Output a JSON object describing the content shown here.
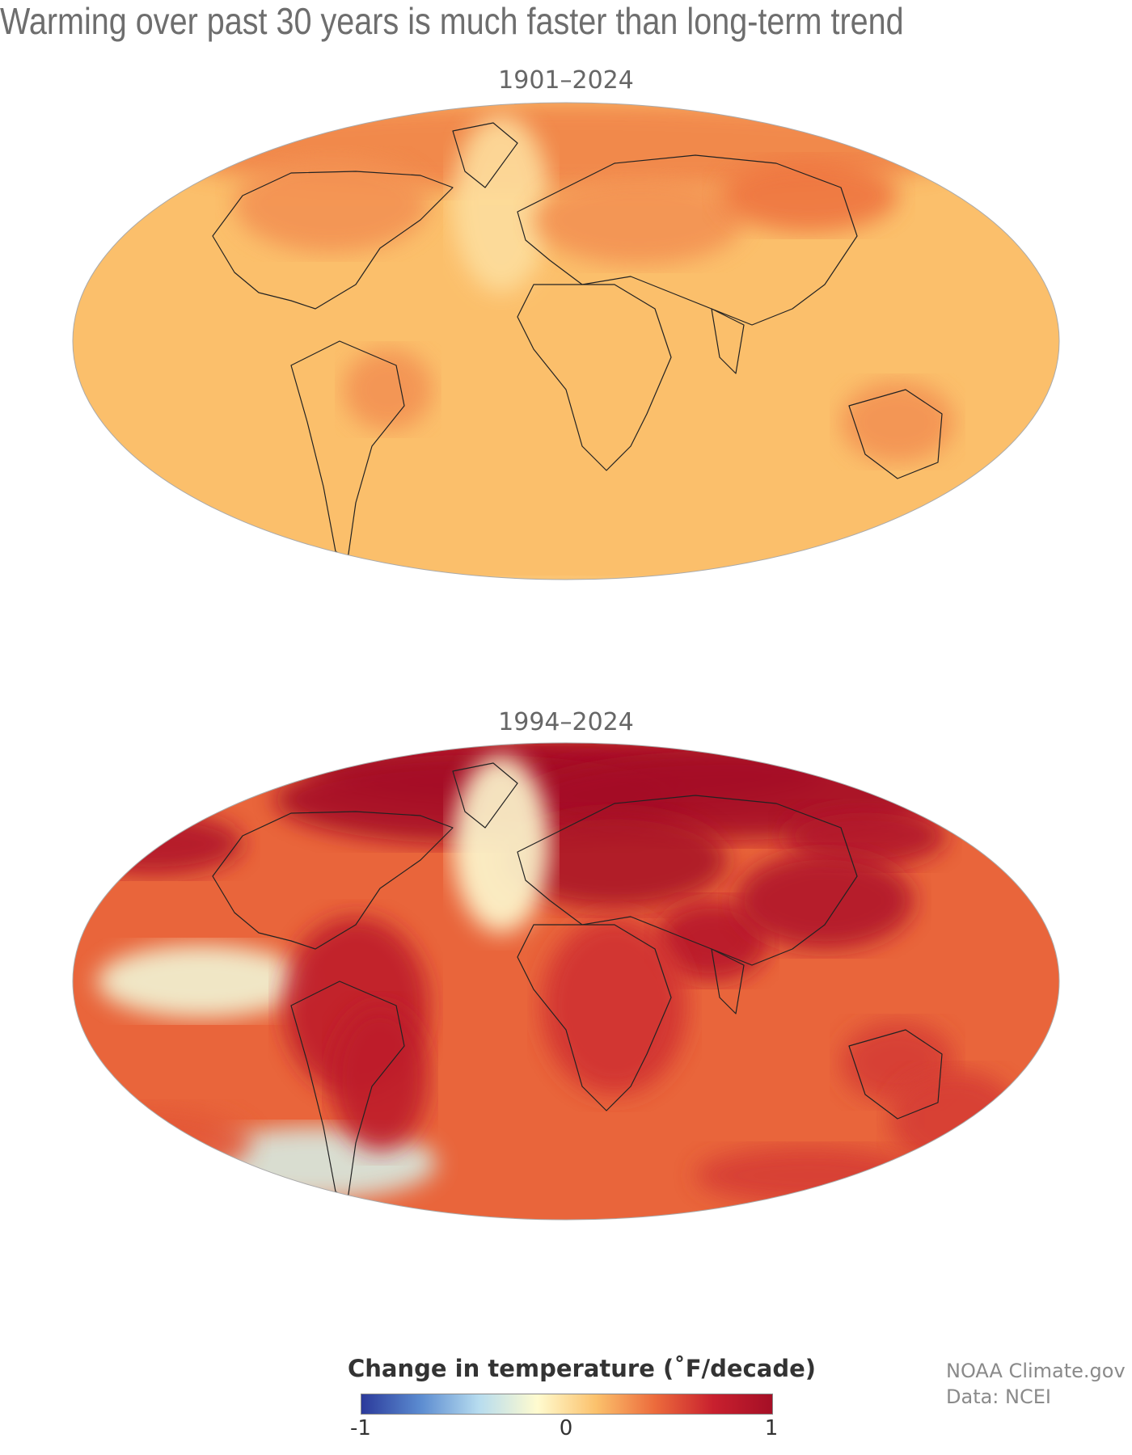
{
  "title": "Warming over past 30 years is much faster than long-term trend",
  "maps": [
    {
      "period": "1901–2024"
    },
    {
      "period": "1994–2024"
    }
  ],
  "legend": {
    "title": "Change in temperature (˚F/decade)",
    "unit": "°F/decade",
    "min": -1,
    "mid": 0,
    "max": 1,
    "tick_neg": "-1",
    "tick_zero": "0",
    "tick_pos": "1",
    "colors": [
      "#2b3a9b",
      "#5b8bd0",
      "#b7dcef",
      "#fffbcf",
      "#fbc16c",
      "#ec6b3c",
      "#c8202e",
      "#a50f26"
    ]
  },
  "credit": {
    "line1": "NOAA Climate.gov",
    "line2": "Data: NCEI"
  },
  "chart_data": {
    "type": "heatmap",
    "projection": "Mollweide",
    "value_range": [
      -1,
      1
    ],
    "maps": [
      {
        "period": "1901–2024",
        "regions": [
          {
            "region": "global oceans",
            "value": 0.15
          },
          {
            "region": "northern high latitudes",
            "value": 0.35
          },
          {
            "region": "Canada / Alaska",
            "value": 0.3
          },
          {
            "region": "North Atlantic south of Greenland",
            "value": 0.0
          },
          {
            "region": "Europe / Russia",
            "value": 0.3
          },
          {
            "region": "Siberia / Mongolia",
            "value": 0.4
          },
          {
            "region": "Brazil",
            "value": 0.3
          },
          {
            "region": "Australia",
            "value": 0.3
          },
          {
            "region": "Antarctica",
            "value": 0.05
          }
        ]
      },
      {
        "period": "1994–2024",
        "regions": [
          {
            "region": "Arctic",
            "value": 1.0
          },
          {
            "region": "North Pacific band",
            "value": 0.9
          },
          {
            "region": "Europe / Western Russia",
            "value": 0.95
          },
          {
            "region": "Middle East / Arabia",
            "value": 0.85
          },
          {
            "region": "China / Mongolia",
            "value": 0.9
          },
          {
            "region": "North Atlantic south of Greenland",
            "value": -0.15
          },
          {
            "region": "eastern tropical Pacific",
            "value": -0.2
          },
          {
            "region": "South Pacific near Antarctic Peninsula",
            "value": -0.3
          },
          {
            "region": "Amazon / South America",
            "value": 0.8
          },
          {
            "region": "Africa",
            "value": 0.65
          },
          {
            "region": "Australia",
            "value": 0.6
          },
          {
            "region": "Southern Ocean near Australia",
            "value": 0.6
          },
          {
            "region": "Antarctic coast (Weddell sector)",
            "value": 0.9
          },
          {
            "region": "Southeast Pacific mid-latitudes",
            "value": 0.5
          }
        ]
      }
    ]
  }
}
